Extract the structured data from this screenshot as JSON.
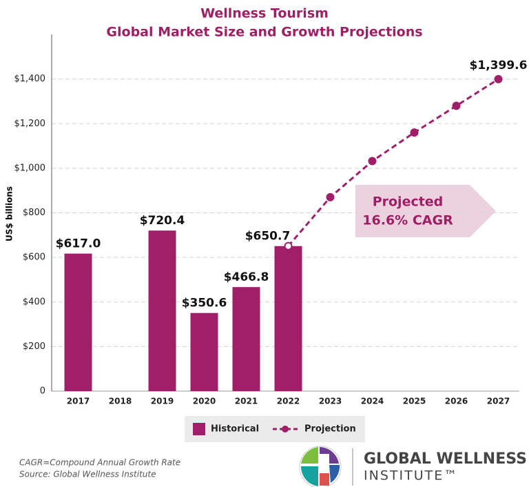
{
  "chart_data": {
    "type": "bar",
    "title": [
      "Wellness Tourism",
      "Global Market Size and Growth Projections"
    ],
    "y_label": "US$ billions",
    "categories": [
      "2017",
      "2018",
      "2019",
      "2020",
      "2021",
      "2022",
      "2023",
      "2024",
      "2025",
      "2026",
      "2027"
    ],
    "series": [
      {
        "name": "Historical",
        "type": "bar",
        "color": "#a01f68",
        "values": [
          617.0,
          null,
          720.4,
          350.6,
          466.8,
          650.7,
          null,
          null,
          null,
          null,
          null
        ],
        "value_labels": [
          "$617.0",
          null,
          "$720.4",
          "$350.6",
          "$466.8",
          "$650.7",
          null,
          null,
          null,
          null,
          null
        ]
      },
      {
        "name": "Projection",
        "type": "line",
        "color": "#a01f68",
        "values": [
          null,
          null,
          null,
          null,
          null,
          650.7,
          870,
          1032,
          1160,
          1280,
          1399.6
        ],
        "value_labels": [
          null,
          null,
          null,
          null,
          null,
          null,
          null,
          null,
          null,
          null,
          "$1,399.6"
        ]
      }
    ],
    "ylim": [
      0,
      1600
    ],
    "yticks": [
      0,
      {
        "value": 200,
        "label": "$200"
      },
      {
        "value": 400,
        "label": "$400"
      },
      {
        "value": 600,
        "label": "$600"
      },
      {
        "value": 800,
        "label": "$800"
      },
      {
        "value": 1000,
        "label": "$1,000"
      },
      {
        "value": 1200,
        "label": "$1,200"
      },
      {
        "value": 1400,
        "label": "$1,400"
      }
    ],
    "grid": true,
    "annotation": [
      "Projected",
      "16.6% CAGR"
    ],
    "footnotes": [
      "CAGR=Compound Annual Growth Rate",
      "Source: Global Wellness Institute"
    ],
    "logo": [
      "GLOBAL WELLNESS",
      "INSTITUTE™"
    ]
  }
}
